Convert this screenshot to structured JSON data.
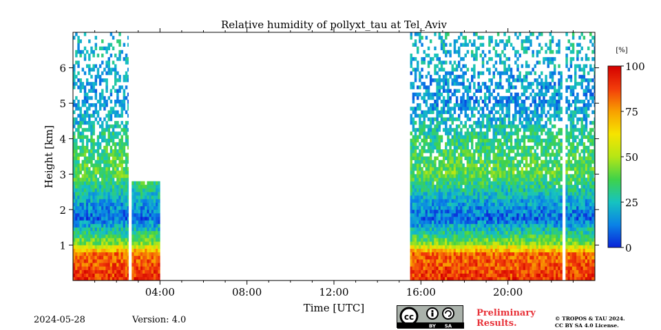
{
  "chart_data": {
    "type": "heatmap",
    "title": "Relative humidity of pollyxt_tau at Tel_Aviv",
    "xlabel": "Time [UTC]",
    "ylabel": "Height [km]",
    "x_unit": "hours UTC",
    "xlim": [
      0,
      24
    ],
    "ylim": [
      0,
      7.0
    ],
    "x_ticks": [
      "04:00",
      "08:00",
      "12:00",
      "16:00",
      "20:00"
    ],
    "x_tick_values": [
      4,
      8,
      12,
      16,
      20
    ],
    "y_ticks": [
      "1",
      "2",
      "3",
      "4",
      "5",
      "6"
    ],
    "y_tick_values": [
      1,
      2,
      3,
      4,
      5,
      6
    ],
    "colorbar": {
      "unit": "[%]",
      "min": 0,
      "max": 100,
      "ticks": [
        "0",
        "25",
        "50",
        "75",
        "100"
      ],
      "tick_values": [
        0,
        25,
        50,
        75,
        100
      ],
      "colormap": [
        "#0a23d8",
        "#0a82e6",
        "#16c3c0",
        "#3fd24a",
        "#b6e615",
        "#f6e400",
        "#f8a000",
        "#f23c0a",
        "#d40000"
      ]
    },
    "data_segments": [
      {
        "start": 0.0,
        "end": 2.55,
        "top_km": 7.0
      },
      {
        "start": 2.7,
        "end": 4.0,
        "top_km": 2.8
      },
      {
        "start": 15.5,
        "end": 22.5,
        "top_km": 7.0
      },
      {
        "start": 22.65,
        "end": 24.0,
        "top_km": 7.0
      }
    ],
    "humidity_profile": [
      {
        "height_km": 0.0,
        "rh": 90
      },
      {
        "height_km": 0.7,
        "rh": 82
      },
      {
        "height_km": 1.0,
        "rh": 45
      },
      {
        "height_km": 1.3,
        "rh": 30
      },
      {
        "height_km": 1.7,
        "rh": 10
      },
      {
        "height_km": 2.2,
        "rh": 20
      },
      {
        "height_km": 3.0,
        "rh": 40
      },
      {
        "height_km": 4.0,
        "rh": 30
      },
      {
        "height_km": 5.0,
        "rh": 15
      },
      {
        "height_km": 7.0,
        "rh": 25
      }
    ]
  },
  "footer": {
    "date": "2024-05-28",
    "version": "Version: 4.0",
    "preliminary_line1": "Preliminary",
    "preliminary_line2": "Results.",
    "license_line1": "© TROPOS & TAU 2024.",
    "license_line2": "CC BY SA 4.0 License.",
    "cc_by": "BY",
    "cc_sa": "SA"
  },
  "colors": {
    "preliminary": "#e8333a",
    "cc_badge": "#aab2ab"
  }
}
